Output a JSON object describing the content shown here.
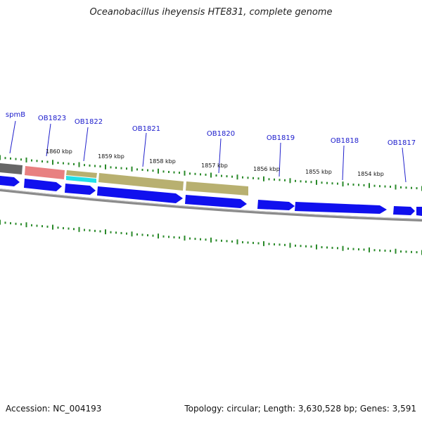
{
  "title": "Oceanobacillus iheyensis HTE831, complete genome",
  "accession": "Accession: NC_004193",
  "summary": "Topology: circular; Length: 3,630,528 bp; Genes: 3,591",
  "colors": {
    "background": "#ffffff",
    "cds_blue": "#1010ee",
    "gene_label": "#1a1acc",
    "tick_green": "#2a8a2a",
    "backbone_gray": "#8a8a8a",
    "olive": "#b8b070",
    "salmon": "#e88080",
    "cyan": "#22e0e8",
    "dark_gray": "#666666"
  },
  "gene_labels": [
    "spmB",
    "OB1823",
    "OB1822",
    "OB1821",
    "OB1820",
    "OB1819",
    "OB1818",
    "OB1817"
  ],
  "kbp_labels": [
    "1860 kbp",
    "1859 kbp",
    "1858 kbp",
    "1857 kbp",
    "1856 kbp",
    "1855 kbp",
    "1854 kbp"
  ]
}
